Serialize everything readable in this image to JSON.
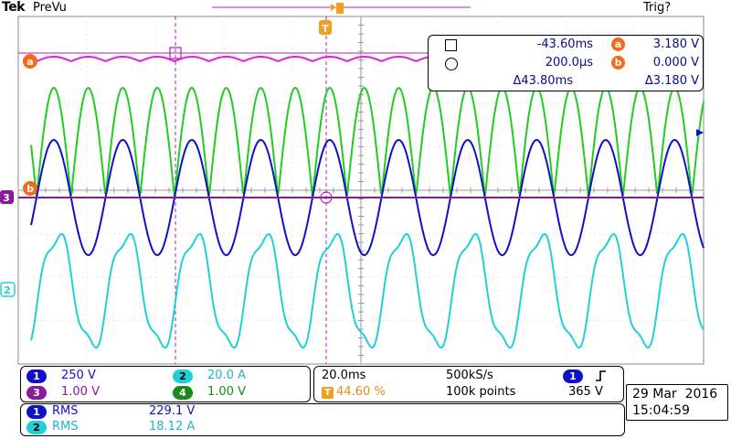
{
  "header": {
    "brand": "Tek",
    "mode": "PreVu",
    "trigger_status": "Trig?"
  },
  "colors": {
    "ch1": "#1010c8",
    "ch2": "#20d0d8",
    "ch3": "#8a1a9a",
    "ch4": "#1a8a1a",
    "math_a": "#e020e0",
    "green_trace": "#22cc22",
    "cursor_line": "#b020b0",
    "badge": "#f26a1b",
    "trigger": "#f0a020"
  },
  "markers": {
    "trigger_letter": "T",
    "ref_a": "a",
    "ref_b": "b",
    "ch3_marker": "3",
    "ch2_marker": "2"
  },
  "cursors": {
    "square_time": "-43.60ms",
    "circle_time": "200.0µs",
    "delta_time": "Δ43.80ms",
    "a_label": "a",
    "a_value": "3.180 V",
    "b_label": "b",
    "b_value": "0.000 V",
    "delta_value": "Δ3.180 V"
  },
  "vertical": [
    {
      "ch": "1",
      "scale": "250 V",
      "color": "#1010c8"
    },
    {
      "ch": "2",
      "scale": "20.0 A",
      "color": "#20d0d8"
    },
    {
      "ch": "3",
      "scale": "1.00 V",
      "color": "#8a1a9a"
    },
    {
      "ch": "4",
      "scale": "1.00 V",
      "color": "#1a8a1a"
    }
  ],
  "horizontal": {
    "timebase": "20.0ms",
    "sample_rate": "500kS/s",
    "trigger_pos": "44.60 %",
    "record_length": "100k points",
    "trigger_ch": "1",
    "trigger_level": "365 V"
  },
  "measurements": [
    {
      "ch": "1",
      "type": "RMS",
      "value": "229.1 V"
    },
    {
      "ch": "2",
      "type": "RMS",
      "value": "18.12 A"
    }
  ],
  "datetime": {
    "date": "29 Mar  2016",
    "time": "15:04:59"
  }
}
